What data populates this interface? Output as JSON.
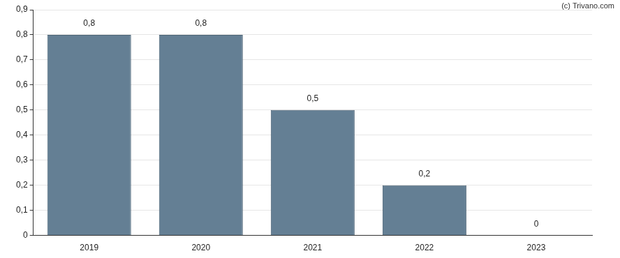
{
  "chart_data": {
    "type": "bar",
    "annotations": [
      "(c) Trivano.com"
    ],
    "categories": [
      "2019",
      "2020",
      "2021",
      "2022",
      "2023"
    ],
    "values": [
      0.8,
      0.8,
      0.5,
      0.2,
      0
    ],
    "value_labels": [
      "0,8",
      "0,8",
      "0,5",
      "0,2",
      "0"
    ],
    "data_labels": true,
    "color": "#647f94",
    "ylim": [
      0,
      0.9
    ],
    "yticks": [
      0,
      {
        "value": 0.1,
        "label": "0,1"
      },
      {
        "value": 0.2,
        "label": "0,2"
      },
      {
        "value": 0.3,
        "label": "0,3"
      },
      {
        "value": 0.4,
        "label": "0,4"
      },
      {
        "value": 0.5,
        "label": "0,5"
      },
      {
        "value": 0.6,
        "label": "0,6"
      },
      {
        "value": 0.7,
        "label": "0,7"
      },
      {
        "value": 0.8,
        "label": "0,8"
      },
      {
        "value": 0.9,
        "label": "0,9"
      }
    ],
    "grid": true
  }
}
